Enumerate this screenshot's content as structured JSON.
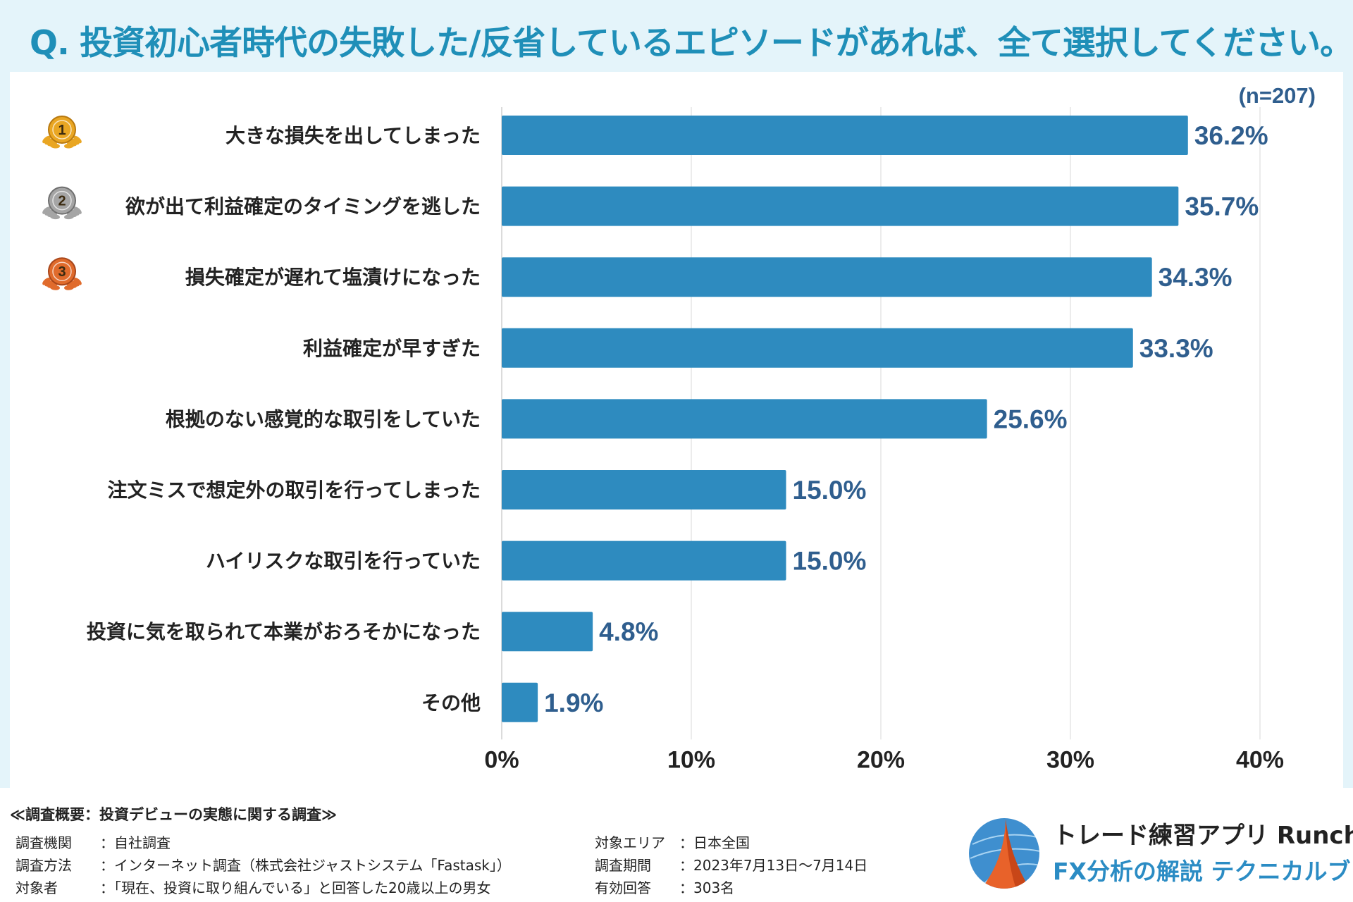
{
  "question": "Q. 投資初心者時代の失敗した/反省しているエピソードがあれば、全て選択してください。",
  "chart_data": {
    "type": "bar",
    "orientation": "horizontal",
    "n_label": "(n=207)",
    "categories": [
      "大きな損失を出してしまった",
      "欲が出て利益確定のタイミングを逃した",
      "損失確定が遅れて塩漬けになった",
      "利益確定が早すぎた",
      "根拠のない感覚的な取引をしていた",
      "注文ミスで想定外の取引を行ってしまった",
      "ハイリスクな取引を行っていた",
      "投資に気を取られて本業がおろそかになった",
      "その他"
    ],
    "values": [
      36.2,
      35.7,
      34.3,
      33.3,
      25.6,
      15.0,
      15.0,
      4.8,
      1.9
    ],
    "value_labels": [
      "36.2%",
      "35.7%",
      "34.3%",
      "33.3%",
      "25.6%",
      "15.0%",
      "15.0%",
      "4.8%",
      "1.9%"
    ],
    "xlim": [
      0,
      40
    ],
    "ticks": [
      0,
      10,
      20,
      30,
      40
    ],
    "tick_labels": [
      "0%",
      "10%",
      "20%",
      "30%",
      "40%"
    ],
    "grid": true,
    "bar_color": "#2e8bbf",
    "label_color": "#2f5e8e",
    "medals": [
      {
        "rank": "1",
        "color": "#e9a623",
        "dark": "#b8790f"
      },
      {
        "rank": "2",
        "color": "#a5a5a5",
        "dark": "#6f6f6f"
      },
      {
        "rank": "3",
        "color": "#e06b2c",
        "dark": "#a8461a"
      }
    ]
  },
  "footer": {
    "title": "≪調査概要：投資デビューの実態に関する調査≫",
    "rows_left": [
      {
        "label": "調査機関",
        "value": "：自社調査"
      },
      {
        "label": "調査方法",
        "value": "：インターネット調査（株式会社ジャストシステム「Fastask」）"
      },
      {
        "label": "対象者",
        "value": "：「現在、投資に取り組んでいる」と回答した20歳以上の男女"
      }
    ],
    "rows_right": [
      {
        "label": "対象エリア",
        "value": "：日本全国"
      },
      {
        "label": "調査期間",
        "value": "：2023年7月13日〜7月14日"
      },
      {
        "label": "有効回答",
        "value": "：303名"
      }
    ]
  },
  "brand": {
    "name": "トレード練習アプリ Runcha",
    "subtitle": "FX分析の解説 テクニカルブック"
  }
}
